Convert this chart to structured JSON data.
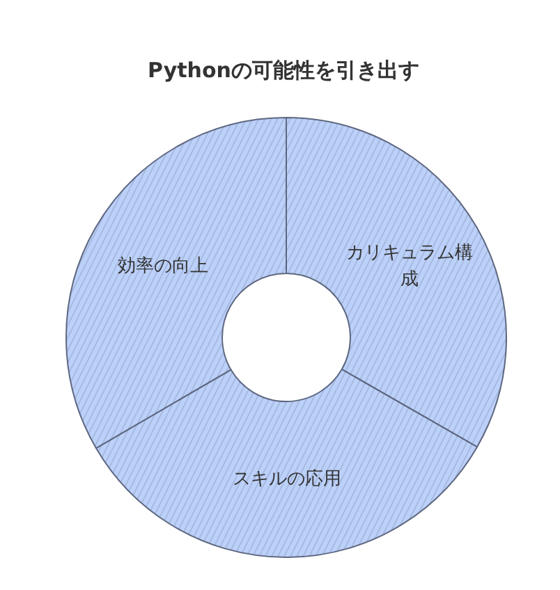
{
  "chart_data": {
    "type": "donut",
    "title": "Pythonの可能性を引き出す",
    "categories": [
      "カリキュラム構成",
      "スキルの応用",
      "効率の向上"
    ],
    "values": [
      33.3,
      33.3,
      33.4
    ],
    "colors": [
      "#bcd1fa",
      "#bcd1fa",
      "#bcd1fa"
    ]
  }
}
